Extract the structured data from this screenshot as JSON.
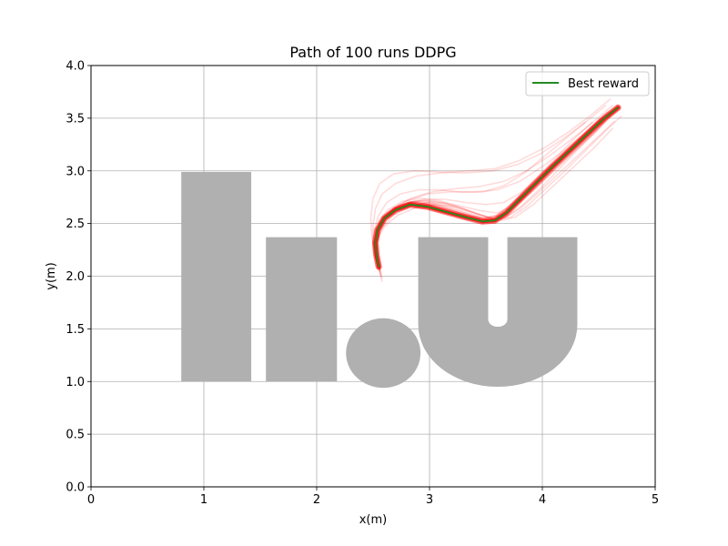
{
  "chart_data": {
    "type": "line",
    "title": "Path of 100 runs DDPG",
    "xlabel": "x(m)",
    "ylabel": "y(m)",
    "xlim": [
      0,
      5
    ],
    "ylim": [
      0.0,
      4.0
    ],
    "xticks": [
      "0",
      "1",
      "2",
      "3",
      "4",
      "5"
    ],
    "yticks": [
      "0.0",
      "0.5",
      "1.0",
      "1.5",
      "2.0",
      "2.5",
      "3.0",
      "3.5",
      "4.0"
    ],
    "grid": true,
    "legend_position": "top-right",
    "colors": {
      "best": "#228b22",
      "runs": "#ff0000",
      "obstacle": "#b0b0b0",
      "grid": "#b0b0b0"
    },
    "obstacles": [
      {
        "shape": "rect",
        "name": "letter-l",
        "x0": 0.8,
        "x1": 1.42,
        "y0": 1.0,
        "y1": 2.99
      },
      {
        "shape": "rect",
        "name": "letter-i-stem",
        "x0": 1.55,
        "x1": 2.18,
        "y0": 1.0,
        "y1": 2.37
      },
      {
        "shape": "circle",
        "name": "dot",
        "cx": 2.59,
        "cy": 1.27,
        "r": 0.33
      },
      {
        "shape": "u",
        "name": "letter-u",
        "x0": 2.9,
        "x1": 4.31,
        "inner_x0": 3.52,
        "inner_x1": 3.69,
        "y_top": 2.37,
        "y_bottom": 0.95
      }
    ],
    "series": [
      {
        "name": "Best reward",
        "x": [
          2.55,
          2.53,
          2.52,
          2.54,
          2.6,
          2.7,
          2.83,
          2.98,
          3.15,
          3.32,
          3.47,
          3.58,
          3.68,
          3.8,
          3.95,
          4.1,
          4.25,
          4.4,
          4.55,
          4.67
        ],
        "y": [
          2.09,
          2.2,
          2.32,
          2.44,
          2.55,
          2.63,
          2.68,
          2.66,
          2.61,
          2.56,
          2.52,
          2.53,
          2.6,
          2.73,
          2.89,
          3.05,
          3.2,
          3.35,
          3.5,
          3.6
        ]
      }
    ],
    "runs": [
      {
        "x": [
          2.58,
          2.54,
          2.52,
          2.54,
          2.6,
          2.72,
          2.85,
          3.0,
          3.18,
          3.35,
          3.5,
          3.6,
          3.72,
          3.88,
          4.05,
          4.22,
          4.4,
          4.55
        ],
        "y": [
          1.95,
          2.1,
          2.3,
          2.45,
          2.57,
          2.66,
          2.7,
          2.68,
          2.63,
          2.57,
          2.53,
          2.55,
          2.65,
          2.8,
          2.98,
          3.15,
          3.32,
          3.48
        ]
      },
      {
        "x": [
          2.56,
          2.52,
          2.52,
          2.56,
          2.64,
          2.76,
          2.9,
          3.05,
          3.22,
          3.38,
          3.52,
          3.64,
          3.78,
          3.95,
          4.12,
          4.3,
          4.48,
          4.62
        ],
        "y": [
          2.05,
          2.18,
          2.34,
          2.48,
          2.6,
          2.68,
          2.72,
          2.71,
          2.66,
          2.6,
          2.56,
          2.58,
          2.68,
          2.84,
          3.02,
          3.2,
          3.38,
          3.55
        ]
      },
      {
        "x": [
          2.54,
          2.5,
          2.5,
          2.55,
          2.63,
          2.76,
          2.92,
          3.08,
          3.26,
          3.42,
          3.56,
          3.68,
          3.82,
          3.98,
          4.15,
          4.32,
          4.5,
          4.66
        ],
        "y": [
          2.1,
          2.24,
          2.38,
          2.52,
          2.63,
          2.71,
          2.74,
          2.72,
          2.66,
          2.59,
          2.54,
          2.56,
          2.67,
          2.83,
          3.02,
          3.21,
          3.4,
          3.57
        ]
      },
      {
        "x": [
          2.57,
          2.53,
          2.51,
          2.55,
          2.62,
          2.72,
          2.86,
          3.02,
          3.2,
          3.36,
          3.48,
          3.58,
          3.7,
          3.86,
          4.02,
          4.2,
          4.38,
          4.52
        ],
        "y": [
          2.0,
          2.14,
          2.3,
          2.46,
          2.58,
          2.66,
          2.71,
          2.7,
          2.65,
          2.59,
          2.55,
          2.57,
          2.66,
          2.82,
          3.0,
          3.18,
          3.36,
          3.5
        ]
      },
      {
        "x": [
          2.55,
          2.52,
          2.53,
          2.6,
          2.7,
          2.82,
          2.96,
          3.12,
          3.3,
          3.46,
          3.6,
          3.74,
          3.9,
          4.08,
          4.26,
          4.44,
          4.6
        ],
        "y": [
          2.12,
          2.26,
          2.4,
          2.54,
          2.64,
          2.7,
          2.72,
          2.7,
          2.66,
          2.62,
          2.6,
          2.66,
          2.8,
          2.98,
          3.16,
          3.34,
          3.52
        ]
      },
      {
        "x": [
          2.56,
          2.53,
          2.52,
          2.56,
          2.65,
          2.8,
          2.98,
          3.18,
          3.4,
          3.6,
          3.8,
          4.0,
          4.2,
          4.4,
          4.58
        ],
        "y": [
          2.08,
          2.22,
          2.36,
          2.5,
          2.62,
          2.72,
          2.78,
          2.8,
          2.8,
          2.82,
          2.9,
          3.04,
          3.2,
          3.38,
          3.56
        ]
      },
      {
        "x": [
          2.55,
          2.52,
          2.52,
          2.58,
          2.68,
          2.84,
          3.02,
          3.22,
          3.44,
          3.66,
          3.86,
          4.06,
          4.26,
          4.46,
          4.62
        ],
        "y": [
          2.1,
          2.24,
          2.38,
          2.52,
          2.64,
          2.74,
          2.8,
          2.83,
          2.85,
          2.9,
          3.0,
          3.14,
          3.3,
          3.47,
          3.62
        ]
      },
      {
        "x": [
          2.54,
          2.5,
          2.5,
          2.52,
          2.58,
          2.7,
          2.88,
          3.1,
          3.34,
          3.58,
          3.8,
          4.02,
          4.22,
          4.42,
          4.6
        ],
        "y": [
          2.14,
          2.3,
          2.48,
          2.64,
          2.78,
          2.88,
          2.95,
          2.98,
          3.0,
          3.02,
          3.1,
          3.22,
          3.36,
          3.52,
          3.68
        ]
      },
      {
        "x": [
          2.52,
          2.49,
          2.48,
          2.5,
          2.56,
          2.68,
          2.86,
          3.08,
          3.32,
          3.56,
          3.78,
          3.98,
          4.18,
          4.38
        ],
        "y": [
          2.18,
          2.36,
          2.56,
          2.74,
          2.88,
          2.97,
          3.0,
          2.99,
          2.98,
          3.0,
          3.06,
          3.16,
          3.3,
          3.46
        ]
      },
      {
        "x": [
          2.56,
          2.53,
          2.53,
          2.6,
          2.72,
          2.88,
          3.05,
          3.22,
          3.38,
          3.52,
          3.64,
          3.76,
          3.92,
          4.1,
          4.28,
          4.46,
          4.62
        ],
        "y": [
          2.06,
          2.2,
          2.34,
          2.47,
          2.58,
          2.65,
          2.68,
          2.66,
          2.61,
          2.56,
          2.53,
          2.56,
          2.68,
          2.86,
          3.04,
          3.22,
          3.4
        ]
      },
      {
        "x": [
          2.57,
          2.54,
          2.53,
          2.58,
          2.68,
          2.82,
          2.98,
          3.14,
          3.3,
          3.46,
          3.6,
          3.72,
          3.86,
          4.02,
          4.2,
          4.38,
          4.56,
          4.7
        ],
        "y": [
          2.02,
          2.16,
          2.32,
          2.46,
          2.58,
          2.66,
          2.7,
          2.69,
          2.64,
          2.58,
          2.54,
          2.56,
          2.66,
          2.82,
          3.0,
          3.19,
          3.38,
          3.52
        ]
      },
      {
        "x": [
          2.55,
          2.52,
          2.52,
          2.57,
          2.66,
          2.8,
          2.96,
          3.14,
          3.32,
          3.5,
          3.66,
          3.82,
          3.98,
          4.16,
          4.34,
          4.52
        ],
        "y": [
          2.08,
          2.22,
          2.36,
          2.5,
          2.61,
          2.69,
          2.73,
          2.73,
          2.7,
          2.68,
          2.7,
          2.8,
          2.96,
          3.14,
          3.32,
          3.5
        ]
      },
      {
        "x": [
          2.58,
          2.55,
          2.53,
          2.56,
          2.63,
          2.74,
          2.88,
          3.04,
          3.22,
          3.4,
          3.54,
          3.66,
          3.8,
          3.96,
          4.14,
          4.32,
          4.5,
          4.64
        ],
        "y": [
          1.98,
          2.12,
          2.28,
          2.43,
          2.56,
          2.65,
          2.69,
          2.68,
          2.63,
          2.57,
          2.53,
          2.55,
          2.64,
          2.79,
          2.97,
          3.15,
          3.33,
          3.47
        ]
      },
      {
        "x": [
          2.54,
          2.51,
          2.51,
          2.55,
          2.62,
          2.74,
          2.9,
          3.08,
          3.28,
          3.48,
          3.66,
          3.84,
          4.02,
          4.2,
          4.38,
          4.56
        ],
        "y": [
          2.12,
          2.28,
          2.44,
          2.58,
          2.7,
          2.78,
          2.82,
          2.82,
          2.8,
          2.8,
          2.86,
          2.98,
          3.14,
          3.3,
          3.46,
          3.62
        ]
      },
      {
        "x": [
          2.56,
          2.53,
          2.52,
          2.55,
          2.62,
          2.73,
          2.87,
          3.02,
          3.18,
          3.34,
          3.48,
          3.6,
          3.74,
          3.9,
          4.08,
          4.26,
          4.44
        ],
        "y": [
          2.06,
          2.2,
          2.35,
          2.49,
          2.6,
          2.68,
          2.71,
          2.69,
          2.64,
          2.58,
          2.55,
          2.58,
          2.7,
          2.88,
          3.08,
          3.28,
          3.46
        ]
      }
    ]
  }
}
